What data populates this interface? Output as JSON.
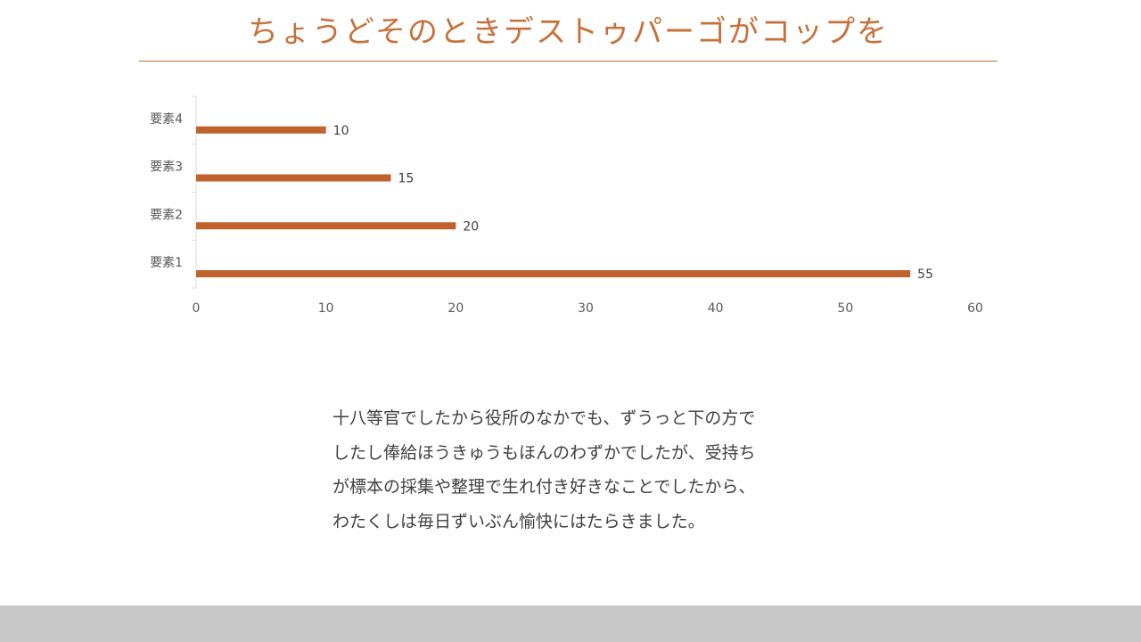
{
  "slide": {
    "title": "ちょうどそのときデストゥパーゴがコップを",
    "body_lines": [
      "十八等官でしたから役所のなかでも、ずうっと下の方で",
      "したし俸給ほうきゅうもほんのわずかでしたが、受持ち",
      "が標本の採集や整理で生れ付き好きなことでしたから、",
      "わたくしは毎日ずいぶん愉快にはたらきました。"
    ]
  },
  "colors": {
    "accent": "#C8703A",
    "bar": "#C0622D",
    "footer": "#C8C8C8"
  },
  "chart_data": {
    "type": "bar",
    "orientation": "horizontal",
    "categories": [
      "要素1",
      "要素2",
      "要素3",
      "要素4"
    ],
    "series": [
      {
        "values": [
          55,
          20,
          15,
          10
        ]
      }
    ],
    "data_labels": [
      "55",
      "20",
      "15",
      "10"
    ],
    "xlim": [
      0,
      60
    ],
    "x_ticks": [
      0,
      10,
      20,
      30,
      40,
      50,
      60
    ],
    "x_tick_labels": [
      "0",
      "10",
      "20",
      "30",
      "40",
      "50",
      "60"
    ],
    "grid": false,
    "legend": "none"
  }
}
